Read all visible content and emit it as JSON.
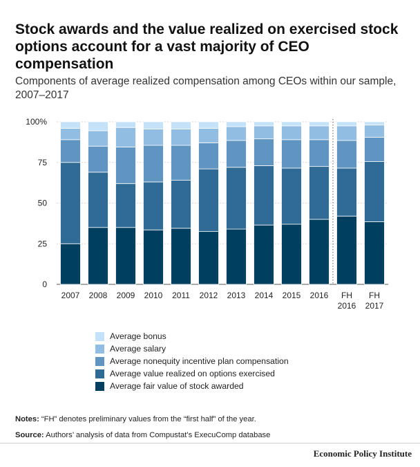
{
  "title": "Stock awards and the value realized on exercised stock options account for a vast majority of CEO compensation",
  "subtitle": "Components of average realized compensation among CEOs within our sample, 2007–2017",
  "notes_label": "Notes:",
  "notes_text": " “FH” denotes preliminary values from the “first half” of the year.",
  "source_label": "Source:",
  "source_text": " Authors’ analysis of data from Compustat’s ExecuComp database",
  "brand": "Economic Policy Institute",
  "chart_data": {
    "type": "bar",
    "stacked": true,
    "categories": [
      [
        "2007"
      ],
      [
        "2008"
      ],
      [
        "2009"
      ],
      [
        "2010"
      ],
      [
        "2011"
      ],
      [
        "2012"
      ],
      [
        "2013"
      ],
      [
        "2014"
      ],
      [
        "2015"
      ],
      [
        "2016"
      ],
      [
        "FH",
        "2016"
      ],
      [
        "FH",
        "2017"
      ]
    ],
    "ylim": [
      0,
      100
    ],
    "yticks": [
      0,
      25,
      50,
      75,
      100
    ],
    "ytick_labels": [
      "0",
      "25",
      "50",
      "75",
      "100%"
    ],
    "divider_after_index": 9,
    "legend_position": "bottom",
    "series": [
      {
        "name": "Average fair value of stock awarded",
        "color": "#003f5f",
        "values": [
          25,
          35,
          35,
          33.5,
          34.5,
          32.5,
          34,
          36.5,
          37,
          40,
          42,
          38.5
        ]
      },
      {
        "name": "Average value realized on options exercised",
        "color": "#2f6b95",
        "values": [
          50,
          34,
          27,
          29.5,
          29.5,
          38.5,
          38,
          36.5,
          34.5,
          32.5,
          29.5,
          37
        ]
      },
      {
        "name": "Average nonequity incentive plan compensation",
        "color": "#5f95c0",
        "values": [
          14,
          16,
          22.5,
          22.5,
          21.5,
          16,
          16.5,
          16.5,
          17.5,
          16.5,
          17,
          15
        ]
      },
      {
        "name": "Average salary",
        "color": "#92bde2",
        "values": [
          7,
          9.5,
          12,
          10,
          10,
          9,
          8.5,
          8,
          8.5,
          8.5,
          9,
          7.5
        ]
      },
      {
        "name": "Average bonus",
        "color": "#c3e1f8",
        "values": [
          4,
          5.5,
          3.5,
          4.5,
          4.5,
          4,
          3,
          2.5,
          2.5,
          2.5,
          2.5,
          2
        ]
      }
    ]
  }
}
